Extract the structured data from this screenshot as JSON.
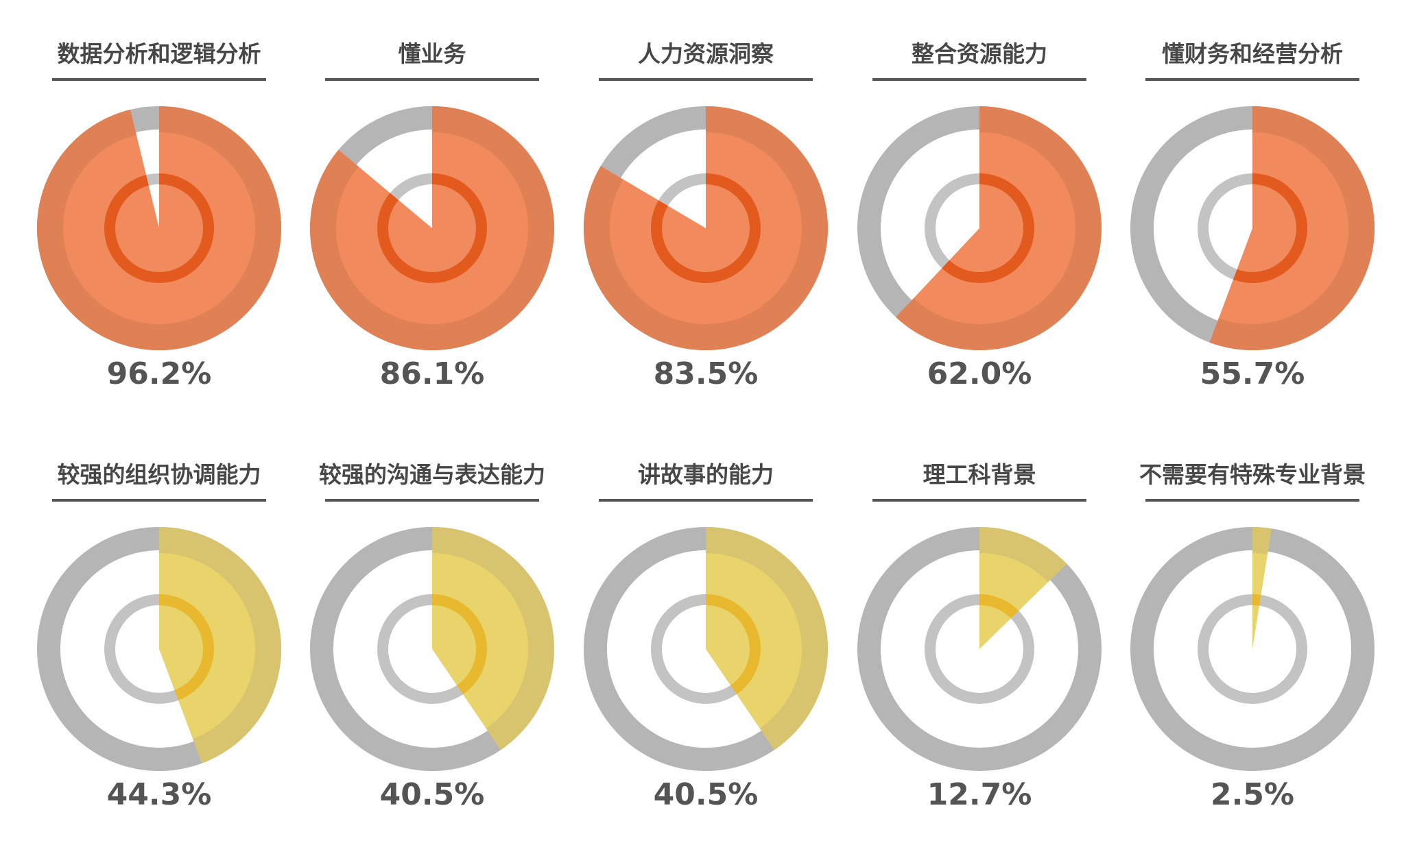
{
  "colors": {
    "track": "#b5b5b5",
    "inner_track": "#c3c3c3",
    "orange_fill": "#f18b5e",
    "orange_outer": "#df8055",
    "orange_inner": "#e35a1f",
    "yellow_fill": "#e8d46a",
    "yellow_outer": "#d8c36e",
    "yellow_inner": "#e8b92f",
    "title_text": "#474747",
    "value_text": "#545454",
    "underline": "#575757"
  },
  "chart_data": [
    {
      "type": "pie",
      "title": "数据分析和逻辑分析",
      "value": 96.2,
      "label": "96.2%",
      "theme": "orange"
    },
    {
      "type": "pie",
      "title": "懂业务",
      "value": 86.1,
      "label": "86.1%",
      "theme": "orange"
    },
    {
      "type": "pie",
      "title": "人力资源洞察",
      "value": 83.5,
      "label": "83.5%",
      "theme": "orange"
    },
    {
      "type": "pie",
      "title": "整合资源能力",
      "value": 62.0,
      "label": "62.0%",
      "theme": "orange"
    },
    {
      "type": "pie",
      "title": "懂财务和经营分析",
      "value": 55.7,
      "label": "55.7%",
      "theme": "orange"
    },
    {
      "type": "pie",
      "title": "较强的组织协调能力",
      "value": 44.3,
      "label": "44.3%",
      "theme": "yellow"
    },
    {
      "type": "pie",
      "title": "较强的沟通与表达能力",
      "value": 40.5,
      "label": "40.5%",
      "theme": "yellow"
    },
    {
      "type": "pie",
      "title": "讲故事的能力",
      "value": 40.5,
      "label": "40.5%",
      "theme": "yellow"
    },
    {
      "type": "pie",
      "title": "理工科背景",
      "value": 12.7,
      "label": "12.7%",
      "theme": "yellow"
    },
    {
      "type": "pie",
      "title": "不需要有特殊专业背景",
      "value": 2.5,
      "label": "2.5%",
      "theme": "yellow"
    }
  ]
}
